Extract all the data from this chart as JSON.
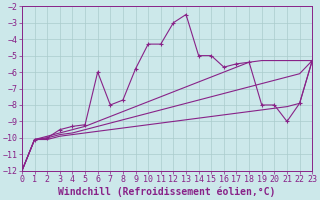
{
  "background_color": "#cce8ea",
  "grid_color": "#aacccc",
  "line_color": "#882288",
  "xlabel": "Windchill (Refroidissement éolien,°C)",
  "xlim": [
    0,
    23
  ],
  "ylim": [
    -12,
    -2
  ],
  "xticks": [
    0,
    1,
    2,
    3,
    4,
    5,
    6,
    7,
    8,
    9,
    10,
    11,
    12,
    13,
    14,
    15,
    16,
    17,
    18,
    19,
    20,
    21,
    22,
    23
  ],
  "yticks": [
    -12,
    -11,
    -10,
    -9,
    -8,
    -7,
    -6,
    -5,
    -4,
    -3,
    -2
  ],
  "label_fontsize": 7,
  "tick_fontsize": 6,
  "series": [
    {
      "x": [
        0,
        1,
        2,
        3,
        4,
        5,
        6,
        7,
        8,
        9,
        10,
        11,
        12,
        13,
        14,
        15,
        16,
        17,
        18,
        19,
        20,
        21,
        22,
        23
      ],
      "y": [
        -12,
        -10.1,
        -10.1,
        -9.9,
        -9.8,
        -9.7,
        -9.6,
        -9.5,
        -9.4,
        -9.3,
        -9.2,
        -9.1,
        -9.0,
        -8.9,
        -8.8,
        -8.7,
        -8.6,
        -8.5,
        -8.4,
        -8.3,
        -8.2,
        -8.1,
        -7.9,
        -5.3
      ],
      "marker": false
    },
    {
      "x": [
        0,
        1,
        2,
        3,
        4,
        5,
        6,
        7,
        8,
        9,
        10,
        11,
        12,
        13,
        14,
        15,
        16,
        17,
        18,
        19,
        20,
        21,
        22,
        23
      ],
      "y": [
        -12,
        -10.1,
        -10.0,
        -9.8,
        -9.7,
        -9.5,
        -9.3,
        -9.1,
        -8.9,
        -8.7,
        -8.5,
        -8.3,
        -8.1,
        -7.9,
        -7.7,
        -7.5,
        -7.3,
        -7.1,
        -6.9,
        -6.7,
        -6.5,
        -6.3,
        -6.1,
        -5.3
      ],
      "marker": false
    },
    {
      "x": [
        0,
        1,
        2,
        3,
        4,
        5,
        6,
        7,
        8,
        9,
        10,
        11,
        12,
        13,
        14,
        15,
        16,
        17,
        18,
        19,
        20,
        21,
        22,
        23
      ],
      "y": [
        -12,
        -10.1,
        -9.9,
        -9.7,
        -9.5,
        -9.3,
        -9.0,
        -8.7,
        -8.4,
        -8.1,
        -7.8,
        -7.5,
        -7.2,
        -6.9,
        -6.6,
        -6.3,
        -6.0,
        -5.7,
        -5.4,
        -5.3,
        -5.3,
        -5.3,
        -5.3,
        -5.3
      ],
      "marker": false
    },
    {
      "x": [
        0,
        1,
        2,
        3,
        4,
        5,
        6,
        7,
        8,
        9,
        10,
        11,
        12,
        13,
        14,
        15,
        16,
        17,
        18,
        19,
        20,
        21,
        22,
        23
      ],
      "y": [
        -12,
        -10.1,
        -10.0,
        -9.5,
        -9.3,
        -9.2,
        -6.0,
        -8.0,
        -7.7,
        -5.8,
        -4.3,
        -4.3,
        -3.0,
        -2.5,
        -5.0,
        -5.0,
        -5.7,
        -5.5,
        -5.4,
        -8.0,
        -8.0,
        -9.0,
        -7.9,
        -5.3
      ],
      "marker": true
    }
  ]
}
